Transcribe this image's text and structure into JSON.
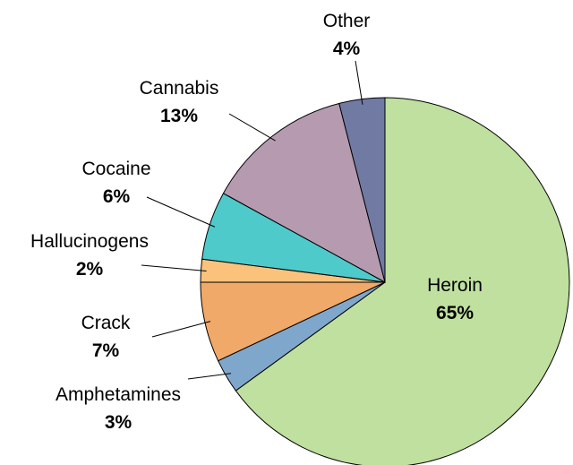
{
  "chart_data": {
    "type": "pie",
    "title": "",
    "slices": [
      {
        "label": "Heroin",
        "value": 65,
        "value_label": "65%",
        "color": "#bfe09f"
      },
      {
        "label": "Amphetamines",
        "value": 3,
        "value_label": "3%",
        "color": "#7fa7cb"
      },
      {
        "label": "Crack",
        "value": 7,
        "value_label": "7%",
        "color": "#f0a968"
      },
      {
        "label": "Hallucinogens",
        "value": 2,
        "value_label": "2%",
        "color": "#fbc27c"
      },
      {
        "label": "Cocaine",
        "value": 6,
        "value_label": "6%",
        "color": "#4fcaca"
      },
      {
        "label": "Cannabis",
        "value": 13,
        "value_label": "13%",
        "color": "#b69bb0"
      },
      {
        "label": "Other",
        "value": 4,
        "value_label": "4%",
        "color": "#717aa3"
      }
    ],
    "legend": "none",
    "labels": "outside with leader lines, except Heroin inside"
  }
}
